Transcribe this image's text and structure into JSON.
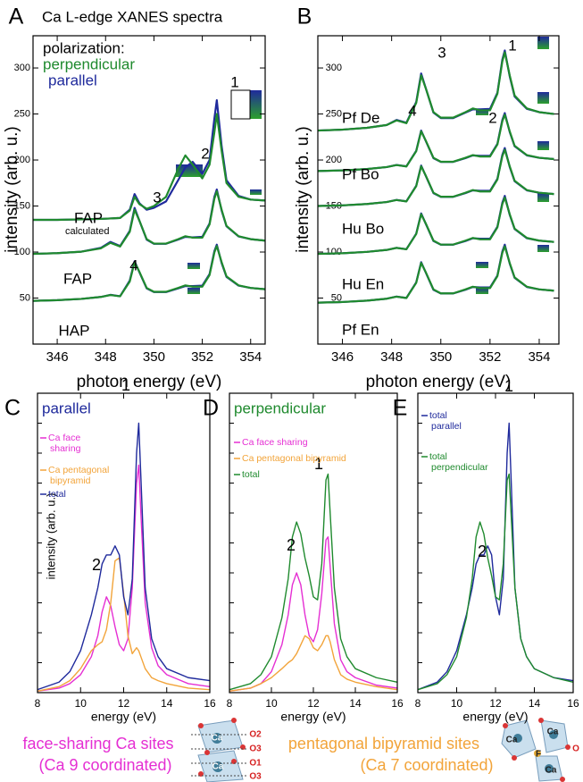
{
  "chart_data": [
    {
      "type": "line",
      "panel": "A",
      "title": "Ca L-edge XANES spectra",
      "legend_title": "polarization:",
      "series": [
        {
          "name": "perpendicular",
          "color": "#1f8a2e"
        },
        {
          "name": "parallel",
          "color": "#1f2a9c"
        }
      ],
      "x": [
        345,
        346,
        347,
        347.8,
        348.2,
        348.6,
        349.0,
        349.2,
        349.4,
        349.7,
        350.0,
        350.5,
        351.0,
        351.3,
        351.6,
        352.0,
        352.3,
        352.5,
        352.6,
        352.8,
        353.0,
        353.5,
        354,
        354.6
      ],
      "groups": [
        {
          "label": "FAP",
          "sublabel": "calculated",
          "values": [
            [
              135,
              135,
              135.5,
              136,
              136.5,
              137,
              145,
              160,
              152,
              147,
              150,
              160,
              190,
              205,
              195,
              180,
              195,
              230,
              250,
              210,
              175,
              160,
              157,
              156
            ],
            [
              135,
              135,
              135.5,
              136,
              136.5,
              137,
              146,
              163,
              153,
              146,
              148,
              155,
              178,
              192,
              198,
              185,
              200,
              245,
              265,
              215,
              178,
              161,
              157,
              156
            ]
          ]
        },
        {
          "label": "FAP",
          "values": [
            [
              98,
              98.8,
              100.4,
              104,
              110,
              106,
              122,
              146,
              134,
              114,
              109.2,
              109.2,
              114,
              117.2,
              115.6,
              115.6,
              130,
              158,
              166,
              146,
              128.4,
              117.2,
              114,
              112.4
            ],
            [
              98,
              98.8,
              100.4,
              104.5,
              111,
              106.5,
              123,
              148,
              134,
              113.5,
              109,
              109,
              113.5,
              116.5,
              116,
              116.5,
              131,
              160,
              168,
              145,
              128,
              117,
              114,
              112.4
            ]
          ]
        },
        {
          "label": "HAP",
          "values": [
            [
              47,
              47.7,
              49.1,
              51.2,
              53.3,
              51.9,
              68,
              89,
              78.5,
              61,
              56.8,
              56.8,
              61,
              63.8,
              62.4,
              62.4,
              75,
              99.5,
              106.5,
              89,
              73.6,
              63.8,
              61,
              59.6
            ],
            [
              47,
              47.7,
              49.1,
              51.2,
              53.5,
              52,
              69,
              90,
              78,
              60.5,
              56.5,
              56.5,
              60.5,
              63,
              63,
              63.5,
              76,
              101,
              108,
              88,
              73,
              63.5,
              61,
              59.6
            ]
          ]
        }
      ],
      "annotations": [
        "1",
        "2",
        "3",
        "4"
      ],
      "xlabel": "photon energy (eV)",
      "ylabel": "intensity (arb. u.)",
      "xlim": [
        345,
        354.6
      ],
      "xticks": [
        346,
        348,
        350,
        352,
        354
      ],
      "ylim": [
        0,
        335
      ],
      "yticks": [
        50,
        100,
        150,
        200,
        250,
        300
      ]
    },
    {
      "type": "line",
      "panel": "B",
      "series": [
        {
          "color": "#1f8a2e"
        },
        {
          "color": "#1f2a9c"
        }
      ],
      "x": [
        345,
        346,
        347,
        347.8,
        348.2,
        348.6,
        349.0,
        349.2,
        349.4,
        349.7,
        350.0,
        350.5,
        351.0,
        351.3,
        351.6,
        352.0,
        352.3,
        352.5,
        352.6,
        352.8,
        353.0,
        353.5,
        354,
        354.6
      ],
      "groups": [
        {
          "label": "Pf De",
          "values": [
            [
              232,
              233,
              235,
              238,
              243,
              240,
              262,
              292,
              277,
              252,
              246,
              246,
              252,
              256,
              254,
              254,
              272,
              307,
              317,
              292,
              270,
              256,
              252,
              250
            ],
            [
              232,
              233,
              235,
              238,
              243.5,
              240.5,
              263,
              294,
              277,
              251.5,
              245.5,
              245.5,
              251.5,
              255,
              255,
              255.5,
              273,
              309,
              319,
              291,
              269,
              255.5,
              252,
              250
            ]
          ]
        },
        {
          "label": "Pf Bo",
          "values": [
            [
              188,
              188.7,
              190.2,
              192.3,
              194.5,
              193,
              209.6,
              231.2,
              220.4,
              202.4,
              198.1,
              198.1,
              202.4,
              205.3,
              203.8,
              203.8,
              216.8,
              242,
              249.2,
              231.2,
              215.4,
              205.3,
              202.4,
              201
            ],
            [
              188,
              188.7,
              190.2,
              192.3,
              194.6,
              193.1,
              210,
              232,
              220,
              202,
              198,
              198,
              202,
              205,
              204.5,
              204.5,
              217.5,
              243.5,
              251,
              230.5,
              215,
              205,
              202.4,
              201
            ]
          ]
        },
        {
          "label": "Hu Bo",
          "values": [
            [
              150,
              150.7,
              152.2,
              154.3,
              156.5,
              155,
              171.6,
              193.2,
              182.4,
              164.4,
              160.1,
              160.1,
              164.4,
              167.3,
              165.8,
              165.8,
              178.8,
              204,
              211.2,
              193.2,
              177.4,
              167.3,
              164.4,
              163
            ],
            [
              150,
              150.7,
              152.2,
              154.3,
              156.6,
              155.1,
              172,
              194,
              182,
              164,
              160,
              160,
              164,
              167,
              166.5,
              166.5,
              179.5,
              205.5,
              213,
              192.5,
              177,
              167,
              164.4,
              163
            ]
          ]
        },
        {
          "label": "Hu En",
          "values": [
            [
              98,
              98.7,
              100.2,
              102.3,
              104.5,
              103,
              119.6,
              141.2,
              130.4,
              112.4,
              108.1,
              108.1,
              112.4,
              115.3,
              113.8,
              113.8,
              126.8,
              152,
              159.2,
              141.2,
              125.4,
              115.3,
              112.4,
              111
            ],
            [
              98,
              98.7,
              100.2,
              102.3,
              104.6,
              103.1,
              120,
              142,
              130,
              112,
              108,
              108,
              112,
              115,
              114.5,
              114.5,
              127.5,
              153.5,
              161,
              140.5,
              125,
              115,
              112.4,
              111
            ]
          ]
        },
        {
          "label": "Pf En",
          "values": [
            [
              45,
              45.7,
              47.2,
              49.3,
              51.5,
              50,
              66.6,
              88.2,
              77.4,
              59.4,
              55.1,
              55.1,
              59.4,
              62.3,
              60.8,
              60.8,
              73.8,
              99,
              106.2,
              88.2,
              72.4,
              62.3,
              59.4,
              58
            ],
            [
              45,
              45.7,
              47.2,
              49.3,
              51.6,
              50.1,
              67,
              89,
              77,
              59,
              55,
              55,
              59,
              62,
              61.5,
              61.5,
              74.5,
              100.5,
              108,
              87.5,
              72,
              62,
              59.4,
              58
            ]
          ]
        }
      ],
      "annotations": [
        "1",
        "2",
        "3",
        "4"
      ],
      "xlabel": "photon energy (eV)",
      "ylabel": "intensity (arb. u.)",
      "xlim": [
        345,
        354.8
      ],
      "xticks": [
        346,
        348,
        350,
        352,
        354
      ],
      "ylim": [
        0,
        335
      ],
      "yticks": [
        50,
        100,
        150,
        200,
        250,
        300
      ]
    },
    {
      "type": "line",
      "panel": "C",
      "title": "parallel",
      "title_color": "#1f2a9c",
      "x": [
        8,
        9,
        9.5,
        10,
        10.5,
        10.8,
        11.0,
        11.2,
        11.4,
        11.6,
        11.8,
        12.0,
        12.2,
        12.4,
        12.6,
        12.7,
        12.8,
        13.0,
        13.3,
        13.6,
        14,
        15,
        16
      ],
      "series": [
        {
          "name": "Ca face sharing",
          "color": "#e52fd3",
          "values": [
            0.05,
            0.15,
            0.3,
            0.6,
            1.2,
            1.9,
            2.7,
            3.2,
            2.9,
            2.2,
            1.6,
            1.4,
            1.8,
            3.5,
            7.0,
            7.6,
            6.0,
            3.0,
            1.5,
            0.9,
            0.6,
            0.3,
            0.2
          ]
        },
        {
          "name": "Ca pentagonal bipyramid",
          "color": "#f2a43a",
          "values": [
            0.05,
            0.2,
            0.4,
            0.8,
            1.4,
            1.6,
            1.7,
            2.1,
            3.0,
            4.4,
            4.5,
            3.3,
            1.9,
            1.3,
            1.5,
            1.4,
            1.2,
            0.8,
            0.5,
            0.4,
            0.3,
            0.15,
            0.1
          ]
        },
        {
          "name": "total",
          "color": "#1f2a9c",
          "values": [
            0.1,
            0.35,
            0.7,
            1.4,
            2.6,
            3.5,
            4.3,
            4.6,
            4.6,
            4.9,
            4.6,
            3.2,
            2.6,
            3.8,
            8.0,
            9.0,
            7.2,
            3.5,
            1.8,
            1.2,
            0.8,
            0.5,
            0.4
          ]
        }
      ],
      "annotations": [
        "1",
        "2"
      ],
      "xlabel": "energy (eV)",
      "ylabel": "intensity (arb. u.)",
      "xlim": [
        8,
        16
      ],
      "xticks": [
        8,
        10,
        12,
        14,
        16
      ],
      "ylim": [
        0,
        10
      ],
      "yticks": [
        1,
        2,
        3,
        4,
        5,
        6,
        7,
        8,
        9
      ]
    },
    {
      "type": "line",
      "panel": "D",
      "title": "perpendicular",
      "title_color": "#1f8a2e",
      "x": [
        8,
        9,
        9.5,
        10,
        10.5,
        10.8,
        11.0,
        11.2,
        11.4,
        11.6,
        11.8,
        12.0,
        12.2,
        12.4,
        12.6,
        12.7,
        12.8,
        13.0,
        13.3,
        13.6,
        14,
        15,
        16
      ],
      "series": [
        {
          "name": "Ca face sharing",
          "color": "#e52fd3",
          "values": [
            0.05,
            0.15,
            0.3,
            0.7,
            1.6,
            2.6,
            3.6,
            4.0,
            3.6,
            2.6,
            1.9,
            1.7,
            2.1,
            3.3,
            5.1,
            5.2,
            4.2,
            2.3,
            1.1,
            0.7,
            0.5,
            0.25,
            0.15
          ]
        },
        {
          "name": "Ca pentagonal bipyramid",
          "color": "#f2a43a",
          "values": [
            0.05,
            0.15,
            0.3,
            0.5,
            0.8,
            1.0,
            1.1,
            1.3,
            1.6,
            1.9,
            1.8,
            1.5,
            1.4,
            1.6,
            1.9,
            1.9,
            1.7,
            1.1,
            0.6,
            0.45,
            0.35,
            0.2,
            0.1
          ]
        },
        {
          "name": "total",
          "color": "#1f8a2e",
          "values": [
            0.1,
            0.3,
            0.6,
            1.2,
            2.5,
            3.8,
            5.2,
            5.7,
            5.3,
            4.5,
            3.9,
            3.2,
            3.1,
            4.3,
            7.1,
            7.3,
            6.0,
            3.5,
            1.8,
            1.2,
            0.8,
            0.5,
            0.35
          ]
        }
      ],
      "annotations": [
        "1",
        "2"
      ],
      "xlabel": "energy (eV)",
      "xlim": [
        8,
        16
      ],
      "xticks": [
        8,
        10,
        12,
        14,
        16
      ],
      "ylim": [
        0,
        10
      ],
      "yticks": [
        1,
        2,
        3,
        4,
        5,
        6,
        7,
        8,
        9
      ]
    },
    {
      "type": "line",
      "panel": "E",
      "x": [
        8,
        9,
        9.5,
        10,
        10.5,
        10.8,
        11.0,
        11.2,
        11.4,
        11.6,
        11.8,
        12.0,
        12.2,
        12.4,
        12.6,
        12.7,
        12.8,
        13.0,
        13.3,
        13.6,
        14,
        15,
        16
      ],
      "series": [
        {
          "name": "total parallel",
          "color": "#1f2a9c",
          "values": [
            0.1,
            0.35,
            0.7,
            1.4,
            2.6,
            3.5,
            4.3,
            4.6,
            4.6,
            4.9,
            4.6,
            3.2,
            2.6,
            3.8,
            8.0,
            9.0,
            7.2,
            3.5,
            1.8,
            1.2,
            0.8,
            0.5,
            0.4
          ]
        },
        {
          "name": "total perpendicular",
          "color": "#1f8a2e",
          "values": [
            0.1,
            0.3,
            0.6,
            1.2,
            2.5,
            3.8,
            5.2,
            5.7,
            5.3,
            4.5,
            3.9,
            3.2,
            3.1,
            4.3,
            7.1,
            7.3,
            6.0,
            3.5,
            1.8,
            1.2,
            0.8,
            0.5,
            0.35
          ]
        }
      ],
      "annotations": [
        "1",
        "2"
      ],
      "xlabel": "energy (eV)",
      "xlim": [
        8,
        16
      ],
      "xticks": [
        8,
        10,
        12,
        14,
        16
      ],
      "ylim": [
        0,
        10
      ],
      "yticks": [
        1,
        2,
        3,
        4,
        5,
        6,
        7,
        8,
        9
      ]
    }
  ],
  "captions": [
    {
      "lines": [
        "face-sharing Ca sites",
        "(Ca 9 coordinated)"
      ],
      "color": "#e52fd3"
    },
    {
      "lines": [
        "pentagonal bipyramid sites",
        "(Ca 7 coordinated)"
      ],
      "color": "#f2a43a"
    }
  ],
  "structures": [
    {
      "labels": [
        "O2",
        "O3",
        "O1",
        "O3",
        "Ca",
        "Ca"
      ]
    },
    {
      "labels": [
        "Ca",
        "Ca",
        "Ca",
        "F",
        "O"
      ]
    }
  ]
}
